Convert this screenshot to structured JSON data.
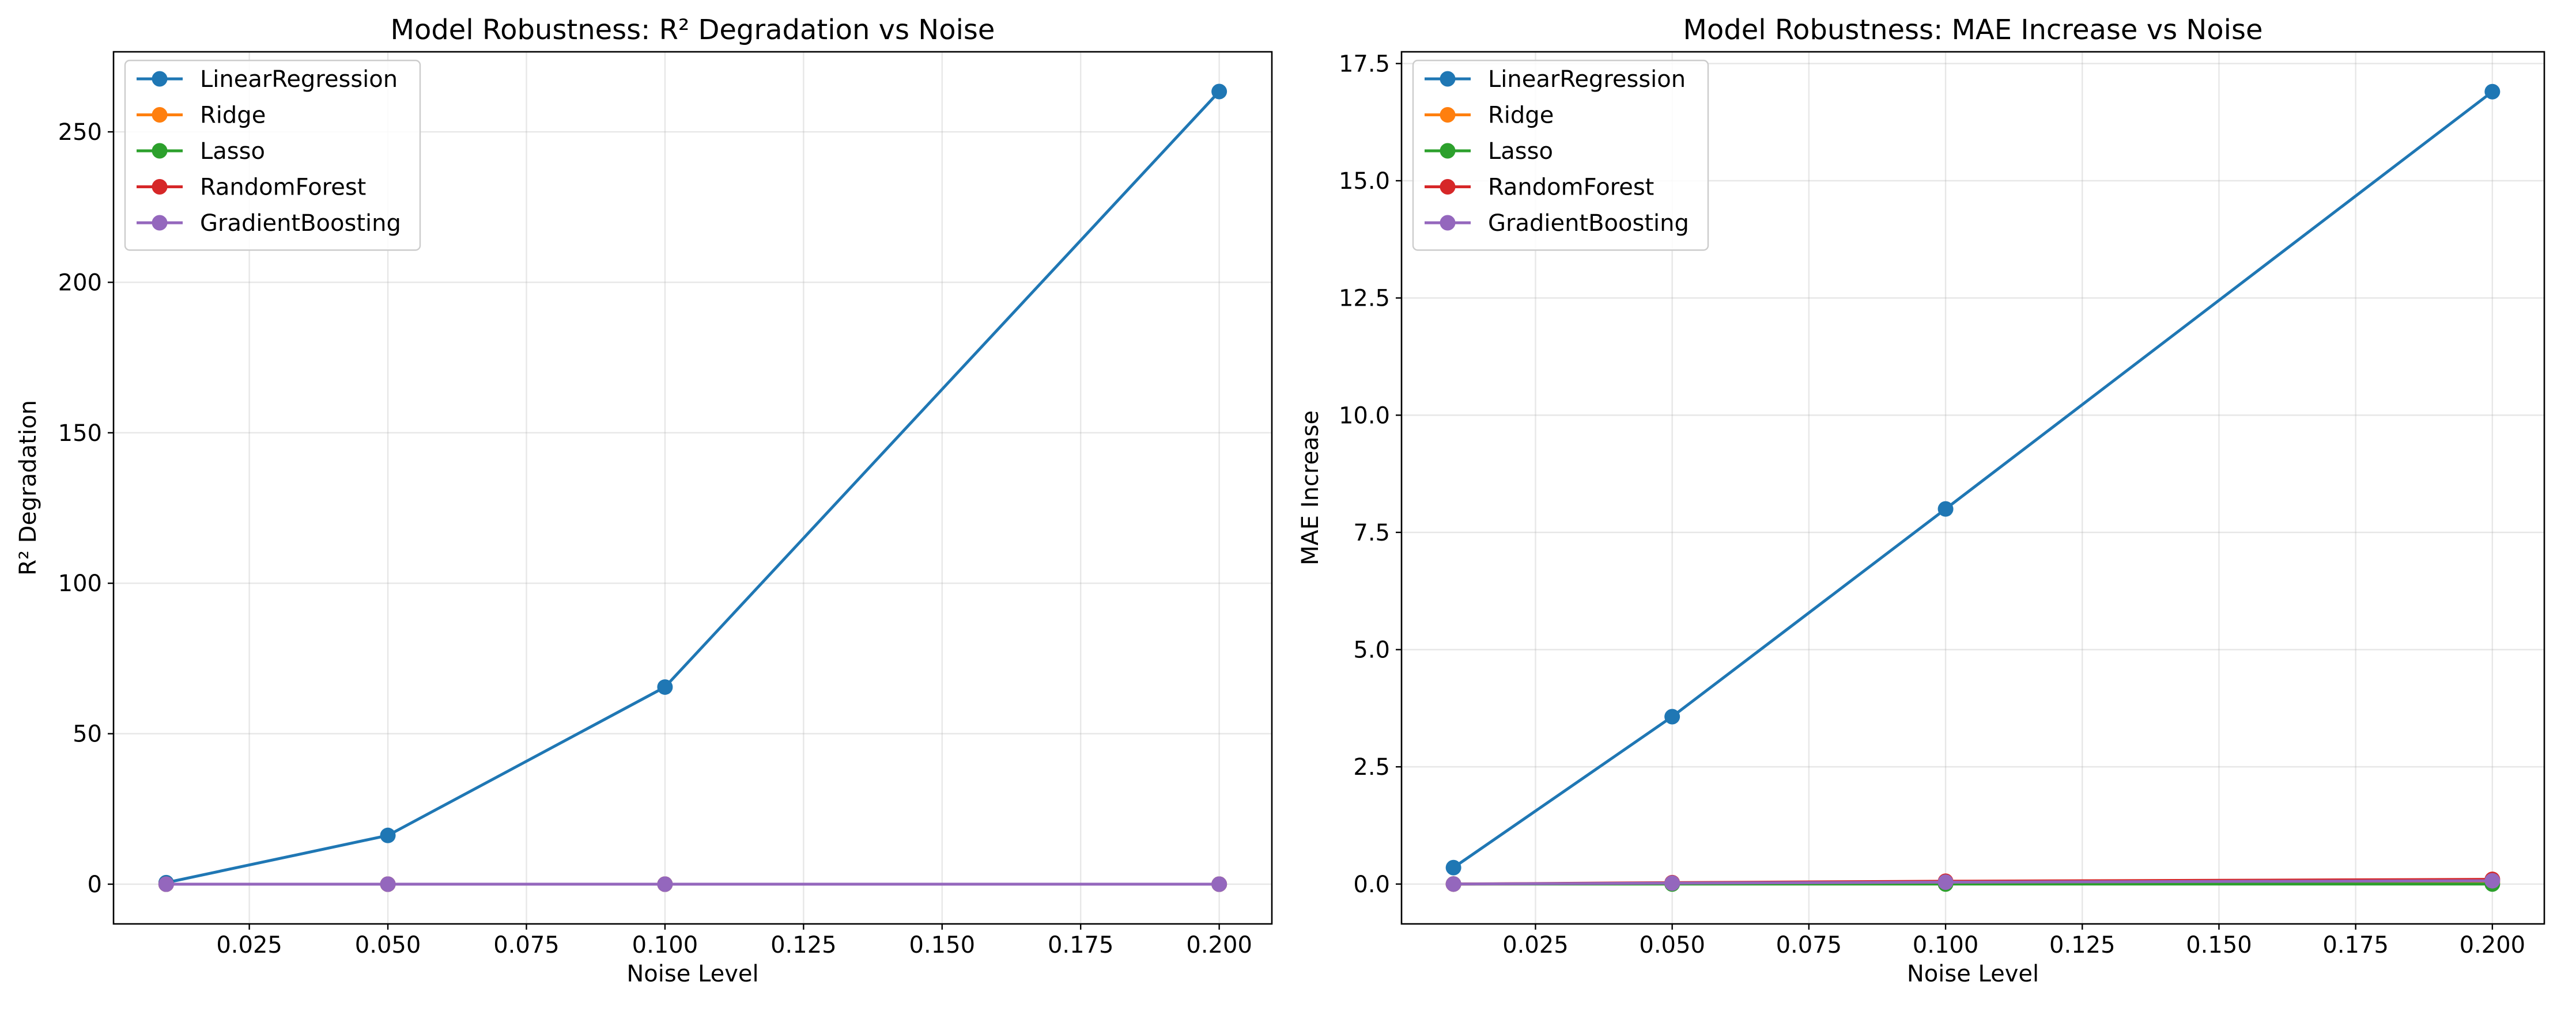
{
  "chart_data": [
    {
      "type": "line",
      "title": "Model Robustness: R² Degradation vs Noise",
      "xlabel": "Noise Level",
      "ylabel": "R² Degradation",
      "x": [
        0.01,
        0.05,
        0.1,
        0.2
      ],
      "xlim": [
        0.0005,
        0.2095
      ],
      "ylim": [
        -13.2,
        276.6
      ],
      "xticks": [
        0.025,
        0.05,
        0.075,
        0.1,
        0.125,
        0.15,
        0.175,
        0.2
      ],
      "xtick_labels": [
        "0.025",
        "0.050",
        "0.075",
        "0.100",
        "0.125",
        "0.150",
        "0.175",
        "0.200"
      ],
      "yticks": [
        0,
        50,
        100,
        150,
        200,
        250
      ],
      "ytick_labels": [
        "0",
        "50",
        "100",
        "150",
        "200",
        "250"
      ],
      "grid": true,
      "legend_position": "upper-left",
      "series": [
        {
          "name": "LinearRegression",
          "color": "#1f77b4",
          "values": [
            0.5,
            16.2,
            65.5,
            263.4
          ]
        },
        {
          "name": "Ridge",
          "color": "#ff7f0e",
          "values": [
            0.0,
            0.0,
            0.0,
            0.0
          ]
        },
        {
          "name": "Lasso",
          "color": "#2ca02c",
          "values": [
            0.0,
            0.0,
            0.0,
            0.0
          ]
        },
        {
          "name": "RandomForest",
          "color": "#d62728",
          "values": [
            0.0,
            0.0,
            0.0,
            0.0
          ]
        },
        {
          "name": "GradientBoosting",
          "color": "#9467bd",
          "values": [
            0.0,
            0.0,
            0.0,
            0.0
          ]
        }
      ]
    },
    {
      "type": "line",
      "title": "Model Robustness: MAE Increase vs Noise",
      "xlabel": "Noise Level",
      "ylabel": "MAE Increase",
      "x": [
        0.01,
        0.05,
        0.1,
        0.2
      ],
      "xlim": [
        0.0005,
        0.2095
      ],
      "ylim": [
        -0.85,
        17.75
      ],
      "xticks": [
        0.025,
        0.05,
        0.075,
        0.1,
        0.125,
        0.15,
        0.175,
        0.2
      ],
      "xtick_labels": [
        "0.025",
        "0.050",
        "0.075",
        "0.100",
        "0.125",
        "0.150",
        "0.175",
        "0.200"
      ],
      "yticks": [
        0,
        2.5,
        5,
        7.5,
        10,
        12.5,
        15,
        17.5
      ],
      "ytick_labels": [
        "0.0",
        "2.5",
        "5.0",
        "7.5",
        "10.0",
        "12.5",
        "15.0",
        "17.5"
      ],
      "grid": true,
      "legend_position": "upper-left",
      "series": [
        {
          "name": "LinearRegression",
          "color": "#1f77b4",
          "values": [
            0.35,
            3.57,
            8.0,
            16.9
          ]
        },
        {
          "name": "Ridge",
          "color": "#ff7f0e",
          "values": [
            0.0,
            0.01,
            0.02,
            0.04
          ]
        },
        {
          "name": "Lasso",
          "color": "#2ca02c",
          "values": [
            0.0,
            0.0,
            0.0,
            0.0
          ]
        },
        {
          "name": "RandomForest",
          "color": "#d62728",
          "values": [
            0.0,
            0.03,
            0.06,
            0.1
          ]
        },
        {
          "name": "GradientBoosting",
          "color": "#9467bd",
          "values": [
            0.0,
            0.02,
            0.04,
            0.07
          ]
        }
      ]
    }
  ]
}
